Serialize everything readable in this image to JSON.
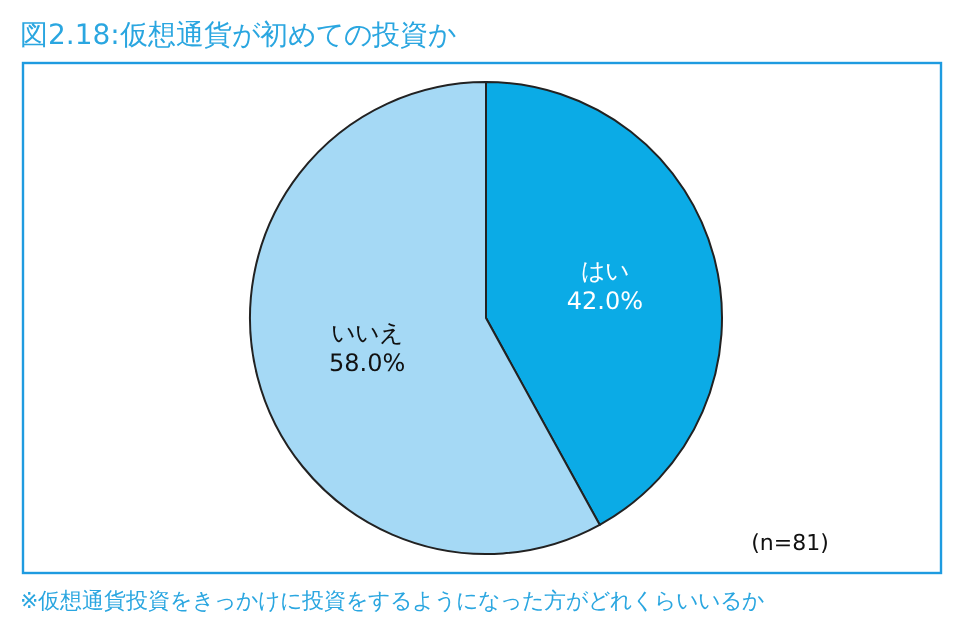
{
  "chart_data": {
    "type": "pie",
    "title": "図2.18:仮想通貨が初めての投資か",
    "categories": [
      "はい",
      "いいえ"
    ],
    "values": [
      42.0,
      58.0
    ],
    "value_labels": [
      "42.0%",
      "58.0%"
    ],
    "colors": [
      "#0babe6",
      "#a5d9f5"
    ],
    "annotations": [
      "(n=81)",
      "※仮想通貨投資をきっかけに投資をするようになった方がどれくらいいるか"
    ]
  }
}
